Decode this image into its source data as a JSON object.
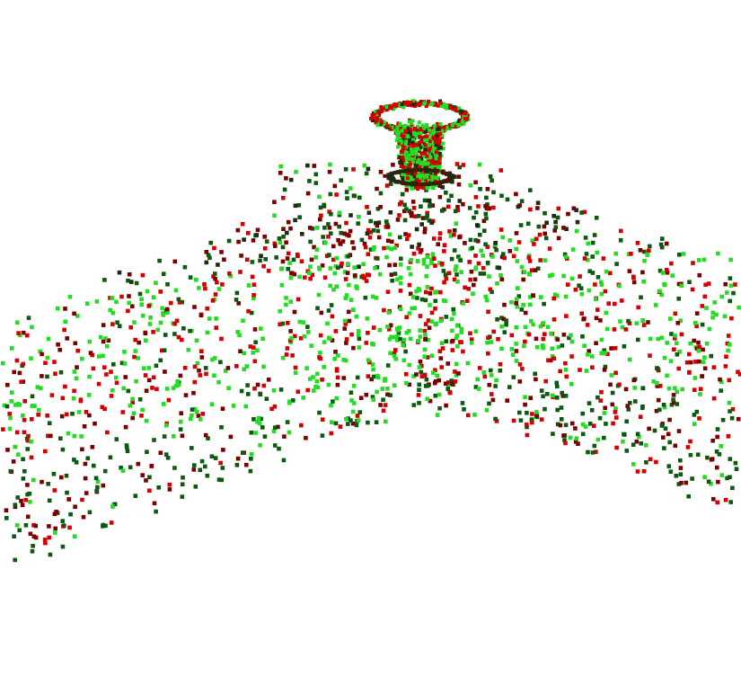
{
  "scene": {
    "background": "#ffffff",
    "palette": {
      "bright_green": "#22dd22",
      "dark_green": "#0b5a10",
      "red": "#d40000",
      "dark_red": "#7a0000",
      "very_dark": "#1f2a12"
    },
    "objects": [
      {
        "kind": "ground-point-cloud",
        "shape": "inverted-v ridge",
        "colors": [
          "bright_green",
          "dark_green",
          "red",
          "dark_red"
        ]
      },
      {
        "kind": "conical-ring-object",
        "position_hint": "top-center",
        "colors": [
          "bright_green",
          "red",
          "very_dark"
        ]
      }
    ]
  }
}
